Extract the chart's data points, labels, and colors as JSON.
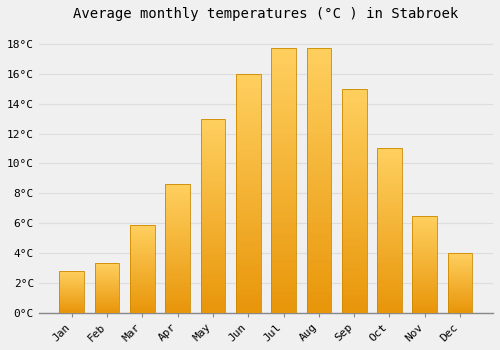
{
  "months": [
    "Jan",
    "Feb",
    "Mar",
    "Apr",
    "May",
    "Jun",
    "Jul",
    "Aug",
    "Sep",
    "Oct",
    "Nov",
    "Dec"
  ],
  "temperatures": [
    2.8,
    3.3,
    5.9,
    8.6,
    13.0,
    16.0,
    17.7,
    17.7,
    15.0,
    11.0,
    6.5,
    4.0
  ],
  "bar_color": "#FFA500",
  "bar_edge_color": "#CC8800",
  "title": "Average monthly temperatures (°C ) in Stabroek",
  "ylim": [
    0,
    19
  ],
  "yticks": [
    0,
    2,
    4,
    6,
    8,
    10,
    12,
    14,
    16,
    18
  ],
  "background_color": "#F0F0F0",
  "grid_color": "#DDDDDD",
  "title_fontsize": 10,
  "tick_fontsize": 8,
  "title_font_family": "monospace",
  "bar_width": 0.7
}
